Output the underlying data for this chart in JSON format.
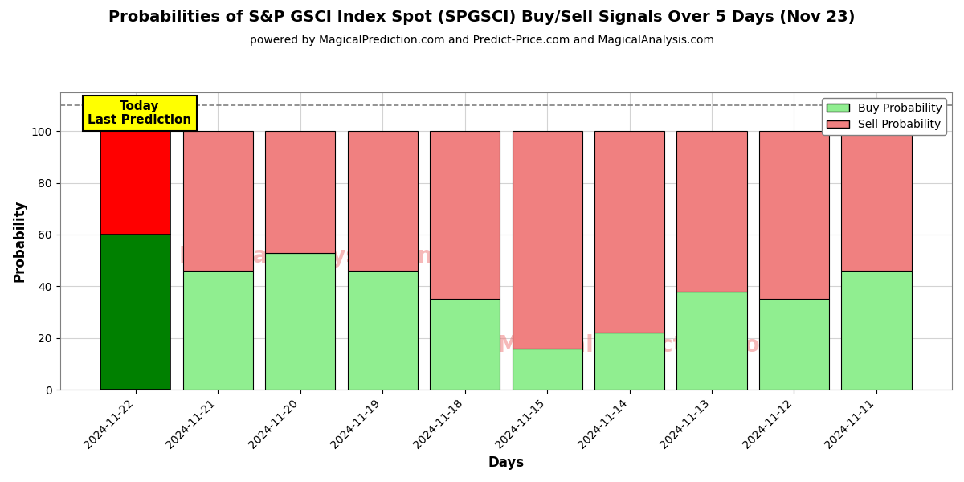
{
  "title": "Probabilities of S&P GSCI Index Spot (SPGSCI) Buy/Sell Signals Over 5 Days (Nov 23)",
  "subtitle": "powered by MagicalPrediction.com and Predict-Price.com and MagicalAnalysis.com",
  "xlabel": "Days",
  "ylabel": "Probability",
  "dates": [
    "2024-11-22",
    "2024-11-21",
    "2024-11-20",
    "2024-11-19",
    "2024-11-18",
    "2024-11-15",
    "2024-11-14",
    "2024-11-13",
    "2024-11-12",
    "2024-11-11"
  ],
  "buy_values": [
    60,
    46,
    53,
    46,
    35,
    16,
    22,
    38,
    35,
    46
  ],
  "sell_values": [
    40,
    54,
    47,
    54,
    65,
    84,
    78,
    62,
    65,
    54
  ],
  "buy_color_today": "#008000",
  "sell_color_today": "#FF0000",
  "buy_color_normal": "#90EE90",
  "sell_color_normal": "#F08080",
  "today_label": "Today\nLast Prediction",
  "today_label_bg": "#FFFF00",
  "dashed_line_y": 110,
  "ylim": [
    0,
    115
  ],
  "yticks": [
    0,
    20,
    40,
    60,
    80,
    100
  ],
  "legend_buy_label": "Buy Probability",
  "legend_sell_label": "Sell Probability",
  "bar_width": 0.85,
  "figsize": [
    12,
    6
  ],
  "dpi": 100
}
